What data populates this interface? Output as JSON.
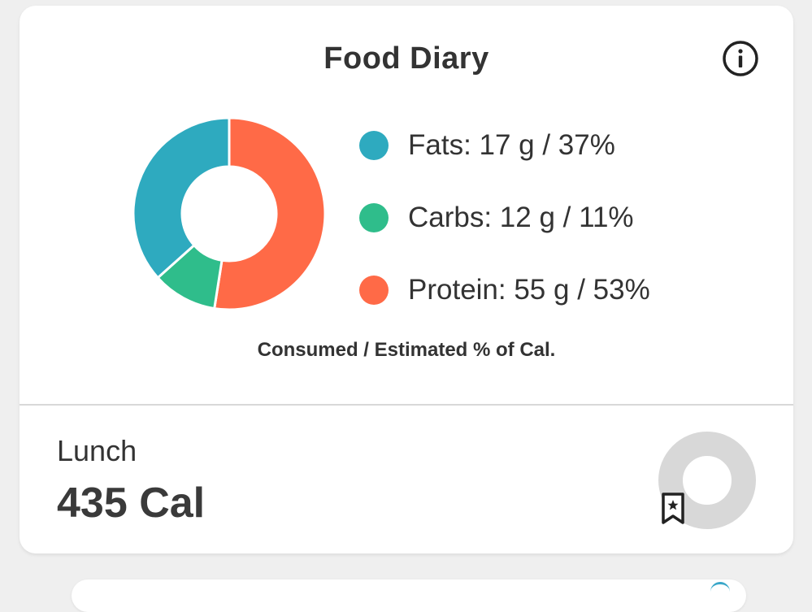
{
  "card": {
    "title": "Food Diary",
    "info_icon": "info-circle-icon",
    "caption": "Consumed / Estimated % of Cal."
  },
  "macros": [
    {
      "label": "Fats: 17 g / 37%",
      "name": "Fats",
      "grams": 17,
      "percent": 37,
      "color": "#2eaabf"
    },
    {
      "label": "Carbs: 12 g / 11%",
      "name": "Carbs",
      "grams": 12,
      "percent": 11,
      "color": "#2fbd8b"
    },
    {
      "label": "Protein: 55 g / 53%",
      "name": "Protein",
      "grams": 55,
      "percent": 53,
      "color": "#ff6a47"
    }
  ],
  "meal": {
    "name": "Lunch",
    "calories": "435 Cal",
    "bookmark_icon": "bookmark-star-icon",
    "ring_color": "#d8d8d8"
  }
}
